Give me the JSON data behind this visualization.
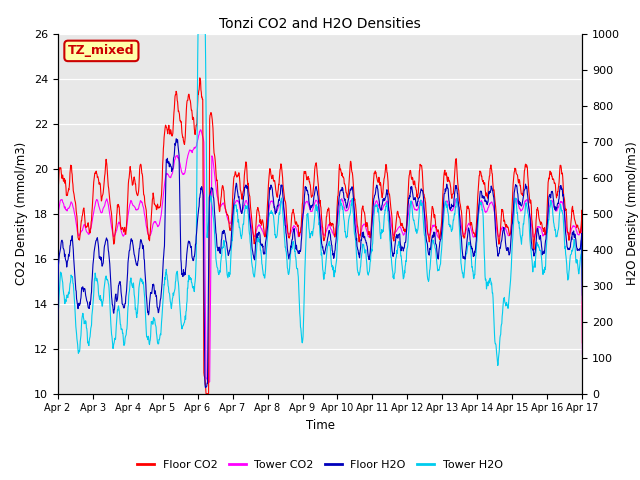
{
  "title": "Tonzi CO2 and H2O Densities",
  "xlabel": "Time",
  "ylabel_left": "CO2 Density (mmol/m3)",
  "ylabel_right": "H2O Density (mmol/m3)",
  "ylim_left": [
    10,
    26
  ],
  "ylim_right": [
    0,
    1000
  ],
  "yticks_left": [
    10,
    12,
    14,
    16,
    18,
    20,
    22,
    24,
    26
  ],
  "yticks_right": [
    0,
    100,
    200,
    300,
    400,
    500,
    600,
    700,
    800,
    900,
    1000
  ],
  "xtick_labels": [
    "Apr 2",
    "Apr 3",
    "Apr 4",
    "Apr 5",
    "Apr 6",
    "Apr 7",
    "Apr 8",
    "Apr 9",
    "Apr 10",
    "Apr 11",
    "Apr 12",
    "Apr 13",
    "Apr 14",
    "Apr 15",
    "Apr 16",
    "Apr 17"
  ],
  "n_days": 15,
  "points_per_day": 96,
  "colors": {
    "floor_co2": "#ff0000",
    "tower_co2": "#ff00ff",
    "floor_h2o": "#0000bb",
    "tower_h2o": "#00ccee"
  },
  "legend_labels": [
    "Floor CO2",
    "Tower CO2",
    "Floor H2O",
    "Tower H2O"
  ],
  "annotation_text": "TZ_mixed",
  "annotation_facecolor": "#ffffaa",
  "annotation_edgecolor": "#cc0000",
  "bg_color": "#e8e8e8",
  "fig_bg": "#ffffff",
  "linewidth": 0.8
}
